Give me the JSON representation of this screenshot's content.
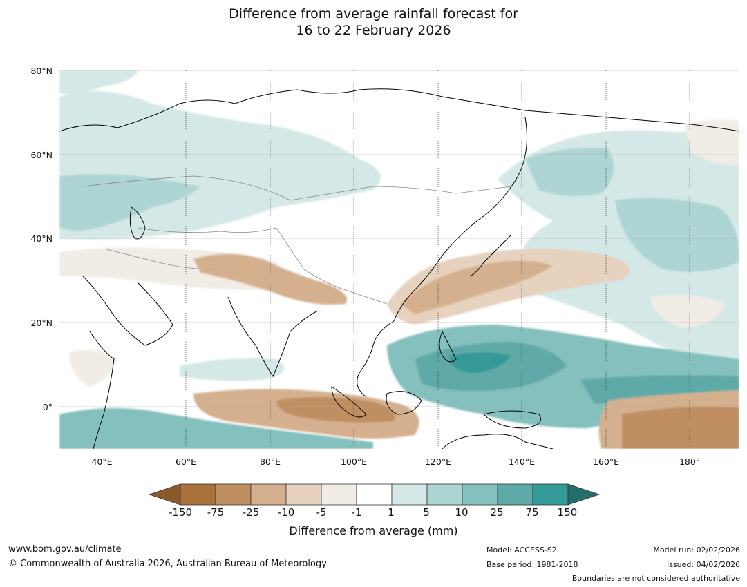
{
  "title": {
    "line1": "Difference from average rainfall forecast for",
    "line2": "16 to 22 February 2026"
  },
  "map": {
    "region": "Asia, Indian Ocean and Western Pacific",
    "lat_labels": [
      "80°N",
      "60°N",
      "40°N",
      "20°N",
      "0°"
    ],
    "lon_labels": [
      "40°E",
      "60°E",
      "80°E",
      "100°E",
      "120°E",
      "140°E",
      "160°E",
      "180°"
    ],
    "lat_range": [
      -10,
      80
    ],
    "lon_range": [
      30,
      190
    ]
  },
  "colorbar": {
    "title": "Difference from average (mm)",
    "ticks": [
      "-150",
      "-75",
      "-25",
      "-10",
      "-5",
      "-1",
      "1",
      "5",
      "10",
      "25",
      "75",
      "150"
    ],
    "colors": [
      "#a9713a",
      "#bf8f62",
      "#d4b08e",
      "#e6d2bf",
      "#f2ece6",
      "#ffffff",
      "#d4e8e7",
      "#acd5d3",
      "#84c0bd",
      "#5eaaa8",
      "#349a97",
      "#236e6c",
      "#8a5a2b"
    ]
  },
  "footer": {
    "website": "www.bom.gov.au/climate",
    "copyright": "© Commonwealth of Australia 2026, Australian Bureau of Meteorology",
    "model": "Model: ACCESS-S2",
    "base_period": "Base period: 1981-2018",
    "model_run": "Model run: 02/02/2026",
    "issued": "Issued: 04/02/2026",
    "disclaimer": "Boundaries are not considered authoritative"
  }
}
